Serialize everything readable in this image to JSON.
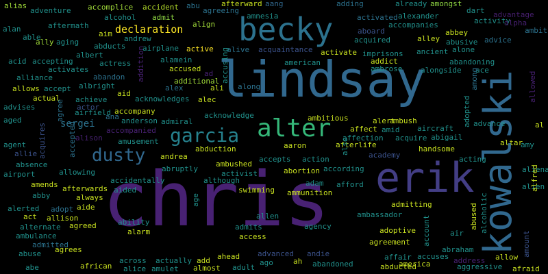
{
  "wordcloud": {
    "background": "#000000",
    "palette": {
      "dark_purple": "#440154",
      "purple": "#46327e",
      "indigo": "#3b528b",
      "blue": "#365c8d",
      "teal_blue": "#2c728e",
      "teal": "#21918c",
      "green": "#35b779",
      "light_green": "#90d743",
      "yellow": "#fde725"
    },
    "words": [
      {
        "text": "chris",
        "color": "#482173"
      },
      {
        "text": "lindsay",
        "color": "#31688e"
      },
      {
        "text": "erik",
        "color": "#433e85"
      },
      {
        "text": "kowalski",
        "color": "#31688e"
      },
      {
        "text": "becky",
        "color": "#2c728e"
      },
      {
        "text": "alter",
        "color": "#35b779"
      },
      {
        "text": "garcia",
        "color": "#26828e"
      },
      {
        "text": "dusty",
        "color": "#31688e"
      },
      {
        "text": "declaration",
        "color": "#fde725"
      },
      {
        "text": "sergei",
        "color": "#2c728e"
      },
      {
        "text": "alias",
        "color": "#a0da39"
      },
      {
        "text": "adventure",
        "color": "#21918c"
      },
      {
        "text": "accomplice",
        "color": "#a0da39"
      },
      {
        "text": "accident",
        "color": "#b5de2b"
      },
      {
        "text": "abu",
        "color": "#2c728e"
      },
      {
        "text": "afterward",
        "color": "#c8e020"
      },
      {
        "text": "aang",
        "color": "#31688e"
      },
      {
        "text": "adding",
        "color": "#2c728e"
      },
      {
        "text": "already",
        "color": "#21918c"
      },
      {
        "text": "amongst",
        "color": "#90d743"
      },
      {
        "text": "dart",
        "color": "#21918c"
      },
      {
        "text": "advantage",
        "color": "#481f70"
      },
      {
        "text": "alcohol",
        "color": "#21918c"
      },
      {
        "text": "admit",
        "color": "#90d743"
      },
      {
        "text": "agreeing",
        "color": "#2c728e"
      },
      {
        "text": "amnesia",
        "color": "#21918c"
      },
      {
        "text": "activated",
        "color": "#2c728e"
      },
      {
        "text": "alexander",
        "color": "#21918c"
      },
      {
        "text": "activity",
        "color": "#21918c"
      },
      {
        "text": "alpha",
        "color": "#482173"
      },
      {
        "text": "alan",
        "color": "#21918c"
      },
      {
        "text": "aftermath",
        "color": "#21918c"
      },
      {
        "text": "align",
        "color": "#a0da39"
      },
      {
        "text": "accompanies",
        "color": "#21918c"
      },
      {
        "text": "ambition",
        "color": "#2c728e"
      },
      {
        "text": "able",
        "color": "#21918c"
      },
      {
        "text": "aim",
        "color": "#c8e020"
      },
      {
        "text": "abducts",
        "color": "#21918c"
      },
      {
        "text": "andrew",
        "color": "#21918c"
      },
      {
        "text": "aboard",
        "color": "#3b528b"
      },
      {
        "text": "abbey",
        "color": "#c8e020"
      },
      {
        "text": "ally",
        "color": "#a0da39"
      },
      {
        "text": "aging",
        "color": "#21918c"
      },
      {
        "text": "acquired",
        "color": "#21918c"
      },
      {
        "text": "alley",
        "color": "#c8e020"
      },
      {
        "text": "abusive",
        "color": "#21918c"
      },
      {
        "text": "advice",
        "color": "#2c728e"
      },
      {
        "text": "albert",
        "color": "#21918c"
      },
      {
        "text": "actress",
        "color": "#21918c"
      },
      {
        "text": "airplane",
        "color": "#21918c"
      },
      {
        "text": "active",
        "color": "#fde725"
      },
      {
        "text": "alive",
        "color": "#2c728e"
      },
      {
        "text": "acquaintance",
        "color": "#3b528b"
      },
      {
        "text": "activate",
        "color": "#c8e020"
      },
      {
        "text": "imprisons",
        "color": "#21918c"
      },
      {
        "text": "ancient",
        "color": "#21918c"
      },
      {
        "text": "alone",
        "color": "#21918c"
      },
      {
        "text": "acid",
        "color": "#21918c"
      },
      {
        "text": "accepting",
        "color": "#21918c"
      },
      {
        "text": "alamein",
        "color": "#21918c"
      },
      {
        "text": "american",
        "color": "#21918c"
      },
      {
        "text": "addict",
        "color": "#c8e020"
      },
      {
        "text": "abandoning",
        "color": "#21918c"
      },
      {
        "text": "alliance",
        "color": "#21918c"
      },
      {
        "text": "activates",
        "color": "#21918c"
      },
      {
        "text": "abandon",
        "color": "#2c728e"
      },
      {
        "text": "accused",
        "color": "#c8e020"
      },
      {
        "text": "ad",
        "color": "#482173"
      },
      {
        "text": "ambrose",
        "color": "#21918c"
      },
      {
        "text": "alongside",
        "color": "#21918c"
      },
      {
        "text": "ace",
        "color": "#21918c"
      },
      {
        "text": "allows",
        "color": "#c8e020"
      },
      {
        "text": "accept",
        "color": "#21918c"
      },
      {
        "text": "albright",
        "color": "#21918c"
      },
      {
        "text": "alex",
        "color": "#2c728e"
      },
      {
        "text": "additional",
        "color": "#a0da39"
      },
      {
        "text": "ali",
        "color": "#c8e020"
      },
      {
        "text": "along",
        "color": "#2c728e"
      },
      {
        "text": "aid",
        "color": "#c8e020"
      },
      {
        "text": "advises",
        "color": "#21918c"
      },
      {
        "text": "actual",
        "color": "#c8e020"
      },
      {
        "text": "achieve",
        "color": "#21918c"
      },
      {
        "text": "acknowledges",
        "color": "#21918c"
      },
      {
        "text": "alec",
        "color": "#c8e020"
      },
      {
        "text": "actor",
        "color": "#3b528b"
      },
      {
        "text": "airfield",
        "color": "#21918c"
      },
      {
        "text": "accompany",
        "color": "#c8e020"
      },
      {
        "text": "acknowledge",
        "color": "#21918c"
      },
      {
        "text": "ambitious",
        "color": "#c8e020"
      },
      {
        "text": "advance",
        "color": "#21918c"
      },
      {
        "text": "aged",
        "color": "#21918c"
      },
      {
        "text": "ana",
        "color": "#2c728e"
      },
      {
        "text": "anderson",
        "color": "#21918c"
      },
      {
        "text": "admiral",
        "color": "#21918c"
      },
      {
        "text": "alert",
        "color": "#c8e020"
      },
      {
        "text": "ambush",
        "color": "#c8e020"
      },
      {
        "text": "affect",
        "color": "#c8e020"
      },
      {
        "text": "amid",
        "color": "#21918c"
      },
      {
        "text": "aircraft",
        "color": "#21918c"
      },
      {
        "text": "al",
        "color": "#c8e020"
      },
      {
        "text": "accompanied",
        "color": "#482173"
      },
      {
        "text": "affection",
        "color": "#21918c"
      },
      {
        "text": "acquire",
        "color": "#21918c"
      },
      {
        "text": "abigail",
        "color": "#21918c"
      },
      {
        "text": "alison",
        "color": "#482173"
      },
      {
        "text": "amusement",
        "color": "#21918c"
      },
      {
        "text": "agent",
        "color": "#21918c"
      },
      {
        "text": "aaron",
        "color": "#c8e020"
      },
      {
        "text": "afterlife",
        "color": "#c8e020"
      },
      {
        "text": "handsome",
        "color": "#c8e020"
      },
      {
        "text": "altar",
        "color": "#c8e020"
      },
      {
        "text": "amy",
        "color": "#21918c"
      },
      {
        "text": "abduction",
        "color": "#c8e020"
      },
      {
        "text": "allie",
        "color": "#3b528b"
      },
      {
        "text": "andrea",
        "color": "#c8e020"
      },
      {
        "text": "accepts",
        "color": "#21918c"
      },
      {
        "text": "action",
        "color": "#21918c"
      },
      {
        "text": "academy",
        "color": "#3b528b"
      },
      {
        "text": "acting",
        "color": "#21918c"
      },
      {
        "text": "absence",
        "color": "#21918c"
      },
      {
        "text": "abruptly",
        "color": "#21918c"
      },
      {
        "text": "ambushed",
        "color": "#c8e020"
      },
      {
        "text": "abortion",
        "color": "#c8e020"
      },
      {
        "text": "according",
        "color": "#21918c"
      },
      {
        "text": "alienate",
        "color": "#21918c"
      },
      {
        "text": "airport",
        "color": "#21918c"
      },
      {
        "text": "allowing",
        "color": "#21918c"
      },
      {
        "text": "accidentally",
        "color": "#21918c"
      },
      {
        "text": "activist",
        "color": "#21918c"
      },
      {
        "text": "amends",
        "color": "#c8e020"
      },
      {
        "text": "aided",
        "color": "#21918c"
      },
      {
        "text": "although",
        "color": "#21918c"
      },
      {
        "text": "adam",
        "color": "#21918c"
      },
      {
        "text": "afford",
        "color": "#21918c"
      },
      {
        "text": "afterwards",
        "color": "#c8e020"
      },
      {
        "text": "alien",
        "color": "#21918c"
      },
      {
        "text": "abby",
        "color": "#21918c"
      },
      {
        "text": "always",
        "color": "#c8e020"
      },
      {
        "text": "swimming",
        "color": "#c8e020"
      },
      {
        "text": "ammunition",
        "color": "#c8e020"
      },
      {
        "text": "alerted",
        "color": "#21918c"
      },
      {
        "text": "adopt",
        "color": "#2c728e"
      },
      {
        "text": "aide",
        "color": "#c8e020"
      },
      {
        "text": "admitting",
        "color": "#c8e020"
      },
      {
        "text": "act",
        "color": "#c8e020"
      },
      {
        "text": "allison",
        "color": "#c8e020"
      },
      {
        "text": "allen",
        "color": "#21918c"
      },
      {
        "text": "ambassador",
        "color": "#21918c"
      },
      {
        "text": "alternate",
        "color": "#21918c"
      },
      {
        "text": "agreed",
        "color": "#c8e020"
      },
      {
        "text": "ability",
        "color": "#21918c"
      },
      {
        "text": "admits",
        "color": "#21918c"
      },
      {
        "text": "agency",
        "color": "#21918c"
      },
      {
        "text": "adoptive",
        "color": "#c8e020"
      },
      {
        "text": "ambulance",
        "color": "#21918c"
      },
      {
        "text": "alarm",
        "color": "#c8e020"
      },
      {
        "text": "access",
        "color": "#c8e020"
      },
      {
        "text": "agreement",
        "color": "#c8e020"
      },
      {
        "text": "admitted",
        "color": "#2c728e"
      },
      {
        "text": "air",
        "color": "#21918c"
      },
      {
        "text": "agrees",
        "color": "#c8e020"
      },
      {
        "text": "abraham",
        "color": "#21918c"
      },
      {
        "text": "abuse",
        "color": "#21918c"
      },
      {
        "text": "advanced",
        "color": "#3b528b"
      },
      {
        "text": "andie",
        "color": "#3b528b"
      },
      {
        "text": "affair",
        "color": "#21918c"
      },
      {
        "text": "accuses",
        "color": "#21918c"
      },
      {
        "text": "address",
        "color": "#482173"
      },
      {
        "text": "allow",
        "color": "#c8e020"
      },
      {
        "text": "across",
        "color": "#21918c"
      },
      {
        "text": "actually",
        "color": "#21918c"
      },
      {
        "text": "add",
        "color": "#c8e020"
      },
      {
        "text": "ahead",
        "color": "#c8e020"
      },
      {
        "text": "abe",
        "color": "#21918c"
      },
      {
        "text": "african",
        "color": "#c8e020"
      },
      {
        "text": "alice",
        "color": "#21918c"
      },
      {
        "text": "amulet",
        "color": "#21918c"
      },
      {
        "text": "almost",
        "color": "#c8e020"
      },
      {
        "text": "adult",
        "color": "#21918c"
      },
      {
        "text": "ago",
        "color": "#21918c"
      },
      {
        "text": "ah",
        "color": "#c8e020"
      },
      {
        "text": "abandoned",
        "color": "#21918c"
      },
      {
        "text": "abducted",
        "color": "#c8e020"
      },
      {
        "text": "america",
        "color": "#c8e020"
      },
      {
        "text": "aggressive",
        "color": "#21918c"
      },
      {
        "text": "afraid",
        "color": "#c8e020"
      },
      {
        "text": "accusing",
        "color": "#21918c"
      },
      {
        "text": "addition",
        "color": "#482173"
      },
      {
        "text": "adopted",
        "color": "#21918c"
      },
      {
        "text": "among",
        "color": "#2c728e"
      },
      {
        "text": "agree",
        "color": "#2c728e"
      },
      {
        "text": "accepted",
        "color": "#2c728e"
      },
      {
        "text": "acquires",
        "color": "#3b528b"
      },
      {
        "text": "age",
        "color": "#21918c"
      },
      {
        "text": "also",
        "color": "#21918c"
      },
      {
        "text": "abused",
        "color": "#c8e020"
      },
      {
        "text": "alcoholic",
        "color": "#21918c"
      },
      {
        "text": "account",
        "color": "#21918c"
      },
      {
        "text": "amount",
        "color": "#3b528b"
      },
      {
        "text": "allowed",
        "color": "#482173"
      },
      {
        "text": "alfred",
        "color": "#c8e020"
      }
    ]
  }
}
